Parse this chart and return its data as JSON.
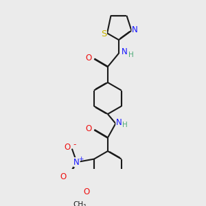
{
  "bg_color": "#ebebeb",
  "bond_color": "#1a1a1a",
  "bond_width": 1.5,
  "dbo": 0.055,
  "atom_colors": {
    "C": "#1a1a1a",
    "H": "#4aaa77",
    "N": "#1414ff",
    "O": "#ee1111",
    "S": "#c8b400"
  },
  "fs": 8.5
}
